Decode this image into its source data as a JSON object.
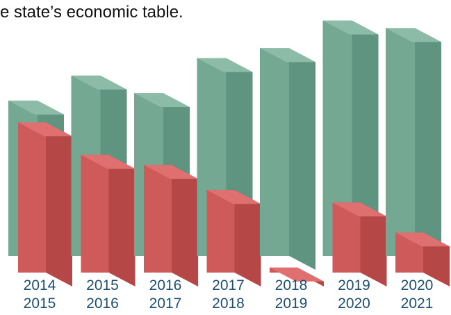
{
  "caption": "e state’s economic table.",
  "colors": {
    "series_a_front": "#74a892",
    "series_a_side": "#5f9580",
    "series_a_top": "#8cbca7",
    "series_b_front": "#cf5a5a",
    "series_b_side": "#b54747",
    "series_b_top": "#e07070",
    "tick_label": "#1d4e70"
  },
  "chart_data": {
    "type": "bar",
    "style": "3d-clustered",
    "title": "",
    "xlabel": "",
    "ylabel": "",
    "grid": false,
    "legend": "none",
    "categories": [
      [
        "2014",
        "2015"
      ],
      [
        "2015",
        "2016"
      ],
      [
        "2016",
        "2017"
      ],
      [
        "2017",
        "2018"
      ],
      [
        "2018",
        "2019"
      ],
      [
        "2019",
        "2020"
      ],
      [
        "2020",
        "2021"
      ]
    ],
    "series": [
      {
        "values": [
          62,
          72,
          65,
          79,
          83,
          94,
          91
        ]
      },
      {
        "values": [
          60,
          47,
          43,
          33,
          2,
          28,
          16
        ]
      }
    ],
    "ylim": [
      0,
      100
    ]
  }
}
